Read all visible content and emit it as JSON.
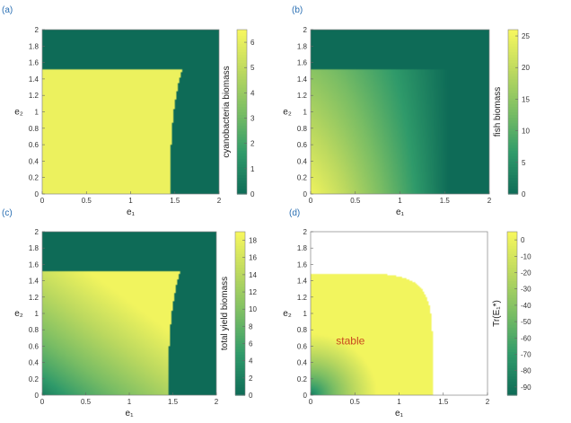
{
  "colors": {
    "colormap": [
      "#0e6b57",
      "#2f9a6a",
      "#79bd64",
      "#bcd95f",
      "#f7f75e"
    ],
    "panel_label": "#2a6fb3",
    "annotation": "#c8481f"
  },
  "chart_data": [
    {
      "type": "heatmap",
      "panel_label": "(a)",
      "title": "",
      "xlabel": "e₁",
      "ylabel": "e₂",
      "xlim": [
        0,
        2
      ],
      "ylim": [
        0,
        2
      ],
      "xticks": [
        "0",
        "0.5",
        "1",
        "1.5",
        "2"
      ],
      "yticks": [
        "0",
        "0.2",
        "0.4",
        "0.6",
        "0.8",
        "1",
        "1.2",
        "1.4",
        "1.6",
        "1.8",
        "2"
      ],
      "colorbar": {
        "label": "cyanobacteria biomass",
        "min": 0,
        "max": 6.5,
        "ticks": [
          "0",
          "1",
          "2",
          "3",
          "4",
          "5",
          "6"
        ]
      },
      "regions": {
        "e2_threshold": 1.51,
        "e1_boundary_bottom": 1.45,
        "e1_boundary_top": 1.58,
        "inside_value": 6.2,
        "outside_value": 0
      },
      "grid": false,
      "annotation": ""
    },
    {
      "type": "heatmap",
      "panel_label": "(b)",
      "title": "",
      "xlabel": "e₁",
      "ylabel": "e₂",
      "xlim": [
        0,
        2
      ],
      "ylim": [
        0,
        2
      ],
      "xticks": [
        "0",
        "0.5",
        "1",
        "1.5",
        "2"
      ],
      "yticks": [
        "0",
        "0.2",
        "0.4",
        "0.6",
        "0.8",
        "1",
        "1.2",
        "1.4",
        "1.6",
        "1.8",
        "2"
      ],
      "colorbar": {
        "label": "fish biomass",
        "min": 0,
        "max": 26,
        "ticks": [
          "0",
          "5",
          "10",
          "15",
          "20",
          "25"
        ]
      },
      "regions": {
        "e2_threshold": 1.51,
        "e1_boundary_bottom": 1.45,
        "e1_boundary_top": 1.58,
        "corner_value": 25,
        "outside_value": 0
      },
      "grid": false,
      "annotation": ""
    },
    {
      "type": "heatmap",
      "panel_label": "(c)",
      "title": "",
      "xlabel": "e₁",
      "ylabel": "e₂",
      "xlim": [
        0,
        2
      ],
      "ylim": [
        0,
        2
      ],
      "xticks": [
        "0",
        "0.5",
        "1",
        "1.5",
        "2"
      ],
      "yticks": [
        "0",
        "0.2",
        "0.4",
        "0.6",
        "0.8",
        "1",
        "1.2",
        "1.4",
        "1.6",
        "1.8",
        "2"
      ],
      "colorbar": {
        "label": "total yield biomass",
        "min": 0,
        "max": 19,
        "ticks": [
          "0",
          "2",
          "4",
          "6",
          "8",
          "10",
          "12",
          "14",
          "16",
          "18"
        ]
      },
      "regions": {
        "e2_threshold": 1.51,
        "e1_boundary_bottom": 1.45,
        "e1_boundary_top": 1.58,
        "max_value": 18.5,
        "outside_value": 0
      },
      "grid": false,
      "annotation": ""
    },
    {
      "type": "heatmap",
      "panel_label": "(d)",
      "title": "",
      "xlabel": "e₁",
      "ylabel": "e₂",
      "xlim": [
        0,
        2
      ],
      "ylim": [
        0,
        2
      ],
      "xticks": [
        "0",
        "0.5",
        "1",
        "1.5",
        "2"
      ],
      "yticks": [
        "0",
        "0.2",
        "0.4",
        "0.6",
        "0.8",
        "1",
        "1.2",
        "1.4",
        "1.6",
        "1.8",
        "2"
      ],
      "colorbar": {
        "label": "Tr(E₁*)",
        "min": -95,
        "max": 5,
        "ticks": [
          "-90",
          "-80",
          "-70",
          "-60",
          "-50",
          "-40",
          "-30",
          "-20",
          "-10",
          "0"
        ]
      },
      "regions": {
        "boundary_e2_at_e1_0": 1.49,
        "boundary_e1_at_e2_0": 1.38,
        "corner_value": -90,
        "max_value": 3
      },
      "grid": true,
      "annotation": "stable"
    }
  ]
}
